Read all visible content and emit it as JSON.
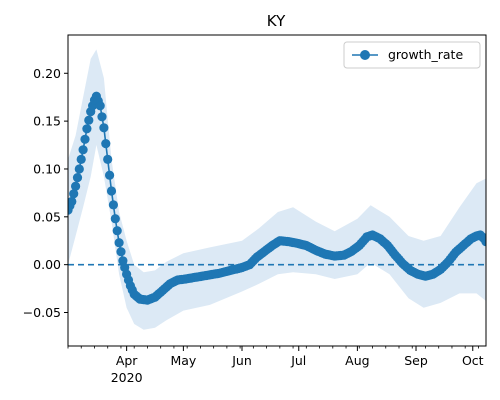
{
  "chart_data": {
    "type": "line",
    "title": "KY",
    "xlabel": "",
    "ylabel": "",
    "x_unit": "date",
    "xlim": [
      "2020-03-01",
      "2020-10-08"
    ],
    "ylim": [
      -0.085,
      0.24
    ],
    "y_ticks": [
      -0.05,
      0.0,
      0.05,
      0.1,
      0.15,
      0.2
    ],
    "y_tick_labels": [
      "−0.05",
      "0.00",
      "0.05",
      "0.10",
      "0.15",
      "0.20"
    ],
    "x_ticks": [
      {
        "date": "2020-04-01",
        "label": "Apr",
        "sublabel": "2020"
      },
      {
        "date": "2020-05-01",
        "label": "May"
      },
      {
        "date": "2020-06-01",
        "label": "Jun"
      },
      {
        "date": "2020-07-01",
        "label": "Jul"
      },
      {
        "date": "2020-08-01",
        "label": "Aug"
      },
      {
        "date": "2020-09-01",
        "label": "Sep"
      },
      {
        "date": "2020-10-01",
        "label": "Oct"
      }
    ],
    "grid": false,
    "legend": {
      "position": "top-right",
      "entries": [
        "growth_rate"
      ]
    },
    "reference_line": {
      "y": 0.0,
      "style": "dashed",
      "color": "#1f77b4"
    },
    "colors": {
      "line": "#1f77b4",
      "band": "#dce9f5"
    },
    "series": [
      {
        "name": "growth_rate",
        "points": [
          [
            "2020-03-01",
            0.057
          ],
          [
            "2020-03-03",
            0.066
          ],
          [
            "2020-03-05",
            0.082
          ],
          [
            "2020-03-07",
            0.1
          ],
          [
            "2020-03-09",
            0.12
          ],
          [
            "2020-03-11",
            0.142
          ],
          [
            "2020-03-13",
            0.16
          ],
          [
            "2020-03-15",
            0.172
          ],
          [
            "2020-03-16",
            0.176
          ],
          [
            "2020-03-18",
            0.166
          ],
          [
            "2020-03-20",
            0.143
          ],
          [
            "2020-03-22",
            0.11
          ],
          [
            "2020-03-24",
            0.077
          ],
          [
            "2020-03-26",
            0.048
          ],
          [
            "2020-03-28",
            0.023
          ],
          [
            "2020-03-30",
            0.004
          ],
          [
            "2020-04-01",
            -0.01
          ],
          [
            "2020-04-03",
            -0.022
          ],
          [
            "2020-04-05",
            -0.031
          ],
          [
            "2020-04-08",
            -0.036
          ],
          [
            "2020-04-12",
            -0.037
          ],
          [
            "2020-04-16",
            -0.034
          ],
          [
            "2020-04-20",
            -0.027
          ],
          [
            "2020-04-24",
            -0.02
          ],
          [
            "2020-04-28",
            -0.016
          ],
          [
            "2020-05-02",
            -0.015
          ],
          [
            "2020-05-08",
            -0.013
          ],
          [
            "2020-05-14",
            -0.011
          ],
          [
            "2020-05-20",
            -0.009
          ],
          [
            "2020-05-26",
            -0.006
          ],
          [
            "2020-06-01",
            -0.003
          ],
          [
            "2020-06-05",
            0.0
          ],
          [
            "2020-06-09",
            0.008
          ],
          [
            "2020-06-13",
            0.014
          ],
          [
            "2020-06-17",
            0.02
          ],
          [
            "2020-06-21",
            0.025
          ],
          [
            "2020-06-26",
            0.024
          ],
          [
            "2020-07-01",
            0.022
          ],
          [
            "2020-07-05",
            0.02
          ],
          [
            "2020-07-10",
            0.015
          ],
          [
            "2020-07-15",
            0.011
          ],
          [
            "2020-07-20",
            0.009
          ],
          [
            "2020-07-25",
            0.01
          ],
          [
            "2020-07-29",
            0.014
          ],
          [
            "2020-08-02",
            0.02
          ],
          [
            "2020-08-06",
            0.029
          ],
          [
            "2020-08-09",
            0.031
          ],
          [
            "2020-08-13",
            0.027
          ],
          [
            "2020-08-17",
            0.02
          ],
          [
            "2020-08-21",
            0.01
          ],
          [
            "2020-08-25",
            0.001
          ],
          [
            "2020-08-29",
            -0.006
          ],
          [
            "2020-09-02",
            -0.01
          ],
          [
            "2020-09-06",
            -0.012
          ],
          [
            "2020-09-10",
            -0.01
          ],
          [
            "2020-09-14",
            -0.005
          ],
          [
            "2020-09-18",
            0.003
          ],
          [
            "2020-09-22",
            0.013
          ],
          [
            "2020-09-26",
            0.02
          ],
          [
            "2020-09-30",
            0.027
          ],
          [
            "2020-10-03",
            0.03
          ],
          [
            "2020-10-05",
            0.031
          ],
          [
            "2020-10-07",
            0.027
          ],
          [
            "2020-10-08",
            0.024
          ]
        ],
        "band": [
          [
            "2020-03-01",
            0.0,
            0.11
          ],
          [
            "2020-03-05",
            0.03,
            0.135
          ],
          [
            "2020-03-09",
            0.06,
            0.175
          ],
          [
            "2020-03-13",
            0.092,
            0.215
          ],
          [
            "2020-03-16",
            0.125,
            0.225
          ],
          [
            "2020-03-20",
            0.092,
            0.195
          ],
          [
            "2020-03-24",
            0.045,
            0.11
          ],
          [
            "2020-03-28",
            -0.01,
            0.055
          ],
          [
            "2020-04-01",
            -0.045,
            0.025
          ],
          [
            "2020-04-05",
            -0.062,
            0.0
          ],
          [
            "2020-04-10",
            -0.068,
            -0.008
          ],
          [
            "2020-04-16",
            -0.066,
            -0.006
          ],
          [
            "2020-04-22",
            -0.058,
            0.003
          ],
          [
            "2020-05-01",
            -0.048,
            0.012
          ],
          [
            "2020-05-15",
            -0.042,
            0.018
          ],
          [
            "2020-06-01",
            -0.028,
            0.025
          ],
          [
            "2020-06-10",
            -0.02,
            0.038
          ],
          [
            "2020-06-20",
            -0.01,
            0.055
          ],
          [
            "2020-06-28",
            -0.008,
            0.06
          ],
          [
            "2020-07-10",
            -0.01,
            0.045
          ],
          [
            "2020-07-20",
            -0.015,
            0.035
          ],
          [
            "2020-08-01",
            -0.01,
            0.048
          ],
          [
            "2020-08-08",
            0.002,
            0.062
          ],
          [
            "2020-08-18",
            -0.01,
            0.05
          ],
          [
            "2020-08-28",
            -0.035,
            0.03
          ],
          [
            "2020-09-05",
            -0.045,
            0.025
          ],
          [
            "2020-09-14",
            -0.04,
            0.03
          ],
          [
            "2020-09-24",
            -0.03,
            0.06
          ],
          [
            "2020-10-03",
            -0.03,
            0.085
          ],
          [
            "2020-10-08",
            -0.038,
            0.09
          ]
        ]
      }
    ]
  }
}
